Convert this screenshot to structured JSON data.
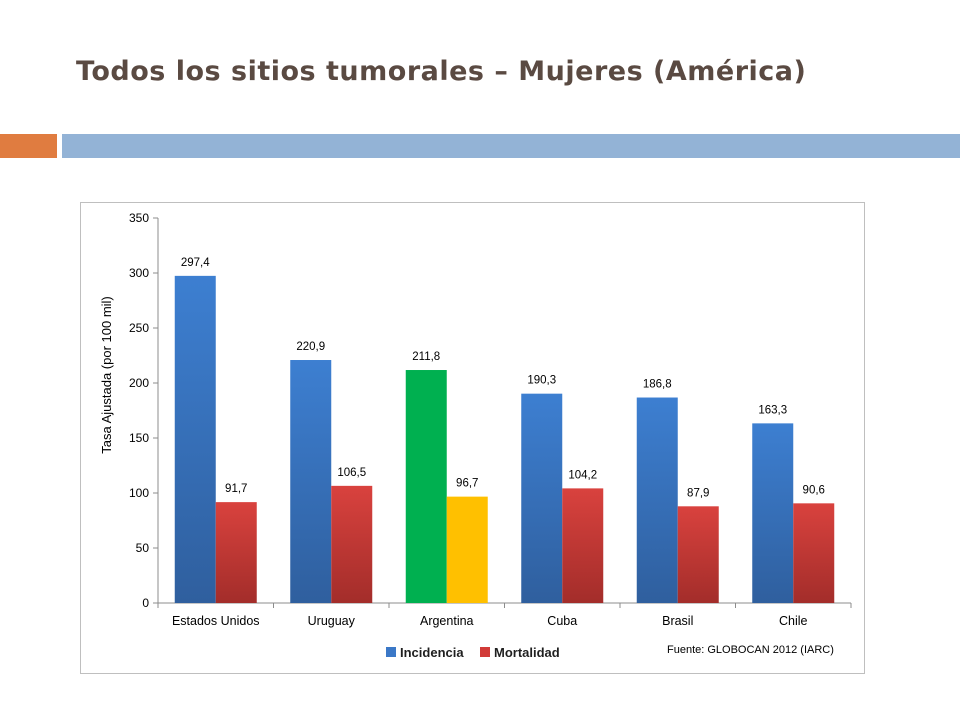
{
  "slide": {
    "title": "Todos los sitios tumorales – Mujeres (América)"
  },
  "colors": {
    "incidencia": "#3b78c7",
    "mortalidad": "#d13b38",
    "highlight_incidencia": "#00b050",
    "highlight_mortalidad": "#ffc000",
    "accent_orange": "#e07c40",
    "accent_blue": "#93b3d6"
  },
  "chart_data": {
    "type": "bar",
    "title": "",
    "ylabel": "Tasa Ajustada (por 100 mil)",
    "xlabel": "",
    "ylim": [
      0,
      350
    ],
    "yticks": [
      "0",
      "50",
      "100",
      "150",
      "200",
      "250",
      "300",
      "350"
    ],
    "grid": false,
    "legend_position": "bottom",
    "categories": [
      "Estados Unidos",
      "Uruguay",
      "Argentina",
      "Cuba",
      "Brasil",
      "Chile"
    ],
    "highlight_category": "Argentina",
    "series": [
      {
        "name": "Incidencia",
        "values": [
          297.4,
          220.9,
          211.8,
          190.3,
          186.8,
          163.3
        ],
        "labels": [
          "297,4",
          "220,9",
          "211,8",
          "190,3",
          "186,8",
          "163,3"
        ]
      },
      {
        "name": "Mortalidad",
        "values": [
          91.7,
          106.5,
          96.7,
          104.2,
          87.9,
          90.6
        ],
        "labels": [
          "91,7",
          "106,5",
          "96,7",
          "104,2",
          "87,9",
          "90,6"
        ]
      }
    ],
    "source": "Fuente: GLOBOCAN 2012 (IARC)"
  }
}
